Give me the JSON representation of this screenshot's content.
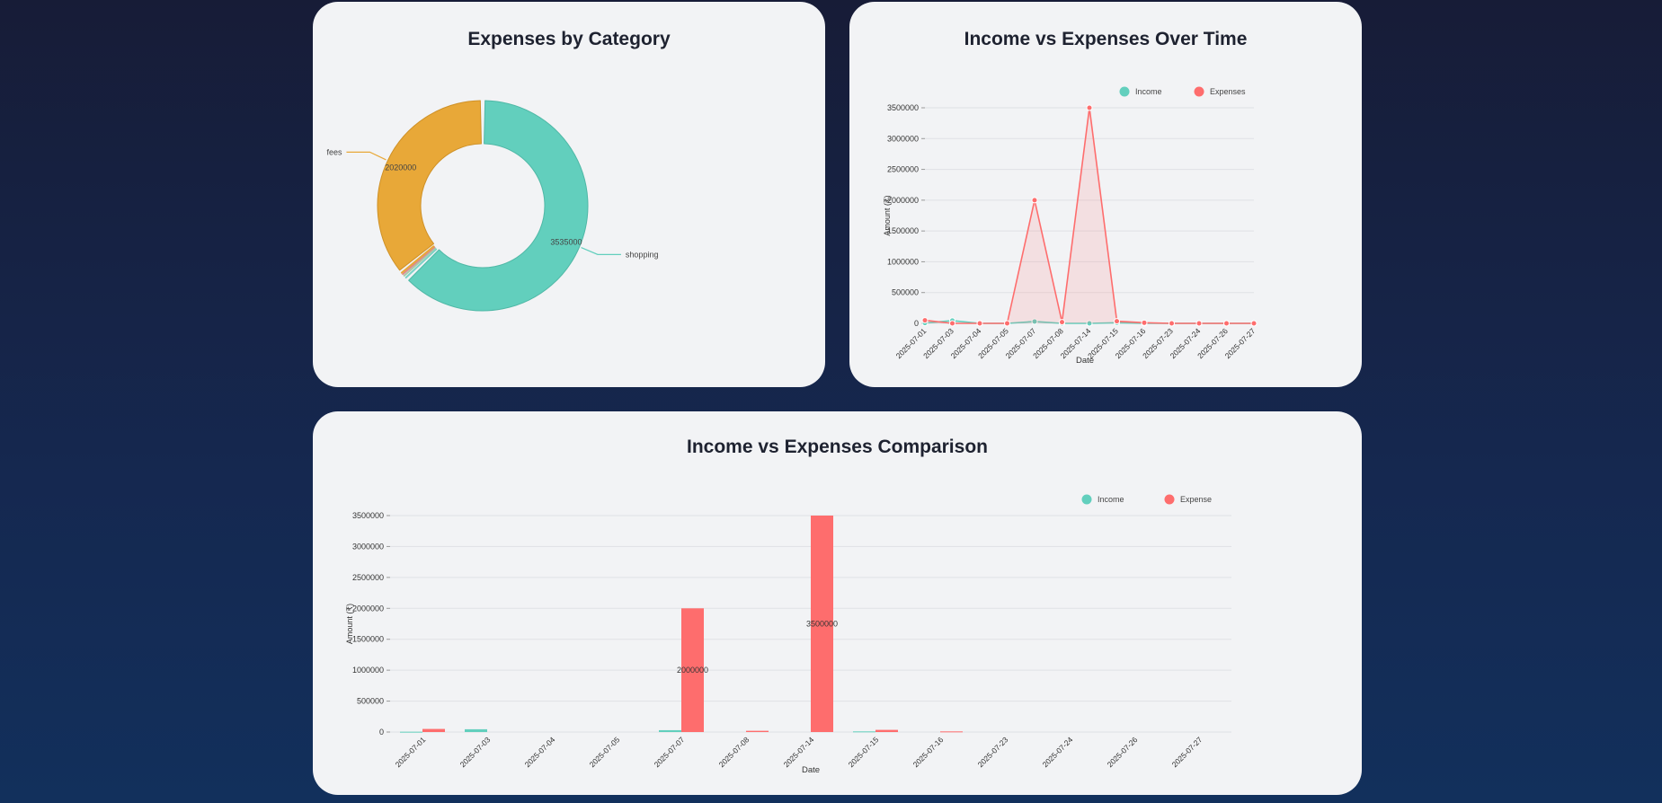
{
  "colors": {
    "income": "#62cfbd",
    "expense": "#fe6d6d",
    "fees": "#e8a838"
  },
  "pie_card": {
    "title": "Expenses by Category"
  },
  "line_card": {
    "title": "Income vs Expenses Over Time"
  },
  "bar_card": {
    "title": "Income vs Expenses Comparison"
  },
  "chart_data": [
    {
      "type": "pie",
      "variant": "donut",
      "title": "Expenses by Category",
      "slices": [
        {
          "label": "shopping",
          "value": 3535000,
          "color": "#62cfbd",
          "show_label": true
        },
        {
          "label": "",
          "value": 25000,
          "color": "#7ad3c6",
          "show_label": false
        },
        {
          "label": "",
          "value": 20000,
          "color": "#a8c8a8",
          "show_label": false
        },
        {
          "label": "",
          "value": 15000,
          "color": "#e08a8a",
          "show_label": false
        },
        {
          "label": "",
          "value": 15000,
          "color": "#e8a838",
          "show_label": false
        },
        {
          "label": "fees",
          "value": 2020000,
          "color": "#e8a838",
          "show_label": true
        }
      ]
    },
    {
      "type": "line",
      "title": "Income vs Expenses Over Time",
      "xlabel": "Date",
      "ylabel": "Amount (₹)",
      "ylim": [
        0,
        3500000
      ],
      "yticks": [
        0,
        500000,
        1000000,
        1500000,
        2000000,
        2500000,
        3000000,
        3500000
      ],
      "legend": "top-right",
      "grid": true,
      "x": [
        "2025-07-01",
        "2025-07-03",
        "2025-07-04",
        "2025-07-05",
        "2025-07-07",
        "2025-07-08",
        "2025-07-14",
        "2025-07-15",
        "2025-07-16",
        "2025-07-23",
        "2025-07-24",
        "2025-07-26",
        "2025-07-27"
      ],
      "series": [
        {
          "name": "Income",
          "color": "#62cfbd",
          "values": [
            5000,
            45000,
            0,
            0,
            30000,
            0,
            0,
            10000,
            0,
            0,
            0,
            0,
            0
          ]
        },
        {
          "name": "Expenses",
          "color": "#fe6d6d",
          "values": [
            50000,
            0,
            0,
            0,
            2000000,
            20000,
            3500000,
            35000,
            10000,
            0,
            0,
            0,
            0
          ]
        }
      ]
    },
    {
      "type": "bar",
      "title": "Income vs Expenses Comparison",
      "xlabel": "Date",
      "ylabel": "Amount (₹)",
      "ylim": [
        0,
        3500000
      ],
      "yticks": [
        0,
        500000,
        1000000,
        1500000,
        2000000,
        2500000,
        3000000,
        3500000
      ],
      "legend": "top-right",
      "grid": true,
      "categories": [
        "2025-07-01",
        "2025-07-03",
        "2025-07-04",
        "2025-07-05",
        "2025-07-07",
        "2025-07-08",
        "2025-07-14",
        "2025-07-15",
        "2025-07-16",
        "2025-07-23",
        "2025-07-24",
        "2025-07-26",
        "2025-07-27"
      ],
      "series": [
        {
          "name": "Income",
          "color": "#62cfbd",
          "values": [
            5000,
            45000,
            0,
            0,
            30000,
            0,
            0,
            10000,
            0,
            0,
            0,
            0,
            0
          ]
        },
        {
          "name": "Expense",
          "color": "#fe6d6d",
          "values": [
            50000,
            0,
            0,
            0,
            2000000,
            20000,
            3500000,
            35000,
            10000,
            0,
            0,
            0,
            0
          ]
        }
      ],
      "data_labels": [
        {
          "category": "2025-07-07",
          "series": "Expense",
          "text": "2000000"
        },
        {
          "category": "2025-07-14",
          "series": "Expense",
          "text": "3500000"
        }
      ]
    }
  ]
}
